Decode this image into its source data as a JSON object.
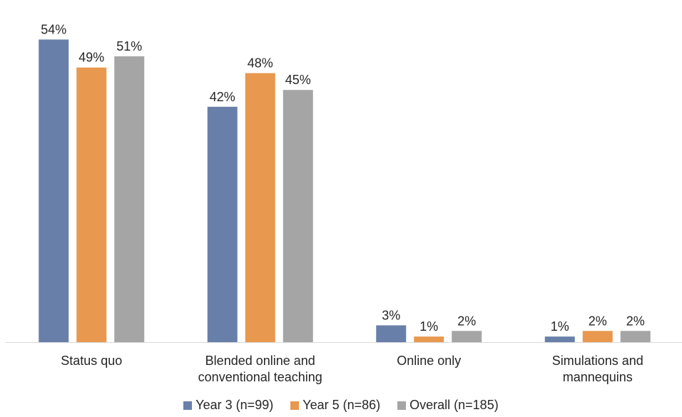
{
  "chart_data": {
    "type": "bar",
    "categories": [
      [
        "Status quo"
      ],
      [
        "Blended online and",
        "conventional teaching"
      ],
      [
        "Online only"
      ],
      [
        "Simulations and",
        "mannequins"
      ]
    ],
    "series": [
      {
        "name": "Year 3 (n=99)",
        "color": "#6880a9",
        "values": [
          54,
          42,
          3,
          1
        ],
        "labels": [
          "54%",
          "42%",
          "3%",
          "1%"
        ]
      },
      {
        "name": "Year 5 (n=86)",
        "color": "#e8984f",
        "values": [
          49,
          48,
          1,
          2
        ],
        "labels": [
          "49%",
          "48%",
          "1%",
          "2%"
        ]
      },
      {
        "name": "Overall (n=185)",
        "color": "#a5a5a5",
        "values": [
          51,
          45,
          2,
          2
        ],
        "labels": [
          "51%",
          "45%",
          "2%",
          "2%"
        ]
      }
    ],
    "ylim": [
      0,
      56
    ],
    "grid": false,
    "legend_position": "bottom",
    "title": "",
    "xlabel": "",
    "ylabel": ""
  }
}
